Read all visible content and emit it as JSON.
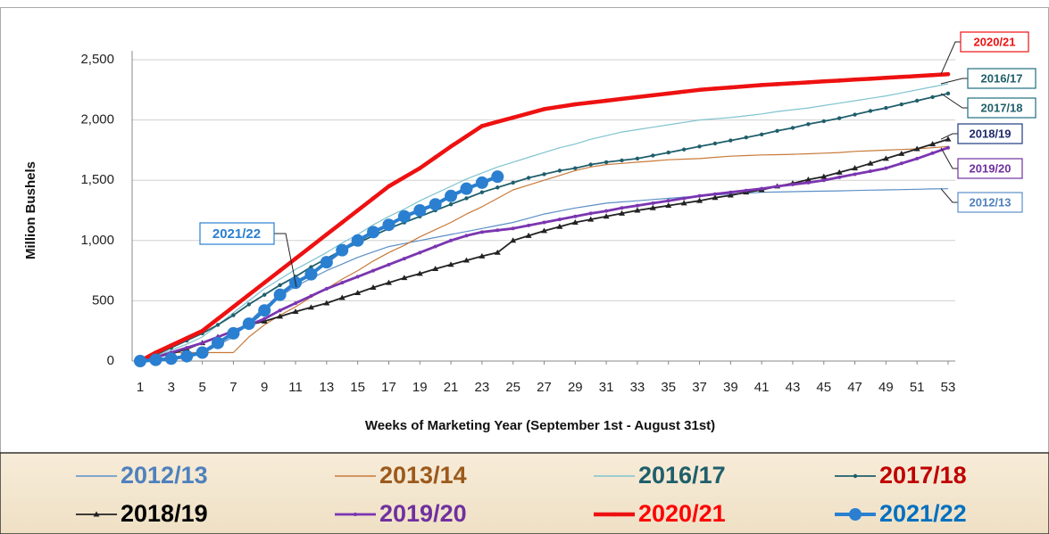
{
  "chart_data": {
    "type": "line",
    "x_label": "Weeks of Marketing Year (September 1st - August 31st)",
    "y_label": "Million Bushels",
    "x": [
      1,
      2,
      3,
      4,
      5,
      6,
      7,
      8,
      9,
      10,
      11,
      12,
      13,
      14,
      15,
      16,
      17,
      18,
      19,
      20,
      21,
      22,
      23,
      24,
      25,
      26,
      27,
      28,
      29,
      30,
      31,
      32,
      33,
      34,
      35,
      36,
      37,
      38,
      39,
      40,
      41,
      42,
      43,
      44,
      45,
      46,
      47,
      48,
      49,
      50,
      51,
      52,
      53
    ],
    "xlim": [
      1,
      53
    ],
    "xticks": [
      1,
      3,
      5,
      7,
      9,
      11,
      13,
      15,
      17,
      19,
      21,
      23,
      25,
      27,
      29,
      31,
      33,
      35,
      37,
      39,
      41,
      43,
      45,
      47,
      49,
      51,
      53
    ],
    "ylim": [
      0,
      2500
    ],
    "yticks": [
      0,
      500,
      {
        "value": 1000,
        "label": "1,000"
      },
      {
        "value": 1500,
        "label": "1,500"
      },
      {
        "value": 2000,
        "label": "2,000"
      },
      {
        "value": 2500,
        "label": "2,500"
      }
    ],
    "grid": true,
    "series": [
      {
        "name": "2012/13",
        "color": "#5b8fc7",
        "legend_color": "#4f81bd",
        "values": [
          0,
          10,
          20,
          40,
          60,
          130,
          200,
          325,
          450,
          535,
          620,
          685,
          750,
          805,
          860,
          905,
          950,
          975,
          1000,
          1025,
          1050,
          1075,
          1100,
          1125,
          1150,
          1185,
          1220,
          1245,
          1270,
          1290,
          1310,
          1320,
          1330,
          1340,
          1350,
          1360,
          1370,
          1378,
          1385,
          1392,
          1400,
          1402,
          1405,
          1408,
          1410,
          1412,
          1415,
          1418,
          1420,
          1422,
          1425,
          1428,
          1430
        ]
      },
      {
        "name": "2013/14",
        "color": "#c77a3a",
        "legend_color": "#9c5a1c",
        "values": [
          0,
          50,
          70,
          70,
          70,
          70,
          70,
          200,
          300,
          380,
          450,
          530,
          600,
          680,
          750,
          830,
          900,
          960,
          1030,
          1090,
          1150,
          1220,
          1280,
          1350,
          1420,
          1460,
          1500,
          1540,
          1580,
          1610,
          1630,
          1640,
          1650,
          1660,
          1670,
          1675,
          1680,
          1690,
          1700,
          1705,
          1710,
          1712,
          1715,
          1720,
          1725,
          1730,
          1740,
          1745,
          1750,
          1755,
          1760,
          1770,
          1780
        ]
      },
      {
        "name": "2016/17",
        "color": "#7fc3cf",
        "legend_color": "#1f5f6b",
        "values": [
          0,
          40,
          90,
          140,
          200,
          300,
          400,
          500,
          600,
          680,
          760,
          830,
          900,
          980,
          1050,
          1130,
          1200,
          1260,
          1330,
          1390,
          1450,
          1510,
          1560,
          1610,
          1650,
          1690,
          1730,
          1770,
          1800,
          1840,
          1870,
          1900,
          1920,
          1940,
          1960,
          1980,
          2000,
          2010,
          2020,
          2035,
          2050,
          2070,
          2085,
          2100,
          2120,
          2140,
          2160,
          2180,
          2200,
          2225,
          2250,
          2275,
          2300
        ]
      },
      {
        "name": "2017/18",
        "color": "#1f5f6b",
        "legend_color": "#c00000",
        "values": [
          0,
          50,
          110,
          170,
          230,
          300,
          380,
          470,
          550,
          630,
          700,
          780,
          850,
          920,
          980,
          1040,
          1100,
          1150,
          1200,
          1250,
          1300,
          1350,
          1400,
          1440,
          1480,
          1520,
          1550,
          1580,
          1600,
          1630,
          1650,
          1665,
          1680,
          1705,
          1730,
          1755,
          1780,
          1805,
          1830,
          1855,
          1880,
          1910,
          1935,
          1965,
          1990,
          2015,
          2045,
          2075,
          2100,
          2130,
          2160,
          2190,
          2220
        ]
      },
      {
        "name": "2018/19",
        "color": "#222222",
        "legend_color": "#000000",
        "values": [
          0,
          30,
          60,
          100,
          150,
          200,
          250,
          300,
          330,
          370,
          410,
          445,
          480,
          525,
          565,
          610,
          650,
          690,
          725,
          765,
          800,
          835,
          870,
          900,
          1000,
          1040,
          1080,
          1115,
          1150,
          1175,
          1200,
          1225,
          1250,
          1270,
          1290,
          1310,
          1330,
          1355,
          1375,
          1400,
          1420,
          1450,
          1475,
          1505,
          1530,
          1565,
          1600,
          1640,
          1680,
          1720,
          1760,
          1800,
          1840
        ]
      },
      {
        "name": "2019/20",
        "color": "#7a35b0",
        "legend_color": "#7030a0",
        "values": [
          0,
          30,
          70,
          110,
          150,
          200,
          250,
          300,
          350,
          420,
          480,
          540,
          600,
          650,
          700,
          750,
          800,
          850,
          900,
          950,
          1000,
          1040,
          1070,
          1085,
          1100,
          1125,
          1150,
          1175,
          1200,
          1225,
          1245,
          1270,
          1290,
          1310,
          1330,
          1350,
          1370,
          1385,
          1400,
          1415,
          1430,
          1450,
          1465,
          1480,
          1500,
          1525,
          1550,
          1575,
          1600,
          1640,
          1680,
          1725,
          1770
        ]
      },
      {
        "name": "2020/21",
        "color": "#ee1111",
        "legend_color": "#ff0000",
        "values": [
          0,
          70,
          130,
          190,
          250,
          350,
          450,
          550,
          650,
          750,
          850,
          950,
          1050,
          1150,
          1250,
          1350,
          1450,
          1525,
          1600,
          1690,
          1780,
          1865,
          1950,
          1985,
          2020,
          2055,
          2090,
          2110,
          2130,
          2145,
          2160,
          2175,
          2190,
          2205,
          2220,
          2235,
          2250,
          2260,
          2270,
          2280,
          2290,
          2297,
          2305,
          2312,
          2320,
          2327,
          2335,
          2342,
          2350,
          2357,
          2365,
          2372,
          2380
        ]
      },
      {
        "name": "2021/22",
        "color": "#2a7fd0",
        "legend_color": "#0070c0",
        "values": [
          0,
          10,
          20,
          40,
          70,
          150,
          230,
          310,
          420,
          550,
          650,
          720,
          820,
          920,
          1000,
          1070,
          1130,
          1200,
          1250,
          1300,
          1370,
          1430,
          1480,
          1530,
          null,
          null,
          null,
          null,
          null,
          null,
          null,
          null,
          null,
          null,
          null,
          null,
          null,
          null,
          null,
          null,
          null,
          null,
          null,
          null,
          null,
          null,
          null,
          null,
          null,
          null,
          null,
          null,
          null
        ]
      }
    ]
  }
}
